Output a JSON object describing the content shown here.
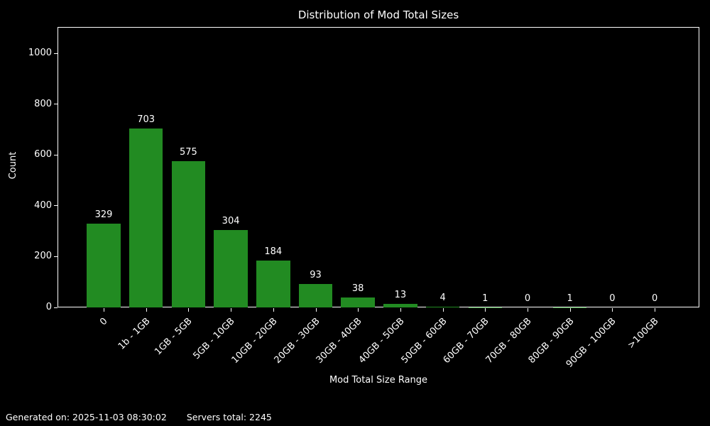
{
  "chart_data": {
    "type": "bar",
    "title": "Distribution of Mod Total Sizes",
    "xlabel": "Mod Total Size Range",
    "ylabel": "Count",
    "categories": [
      "0",
      "1b - 1GB",
      "1GB - 5GB",
      "5GB - 10GB",
      "10GB - 20GB",
      "20GB - 30GB",
      "30GB - 40GB",
      "40GB - 50GB",
      "50GB - 60GB",
      "60GB - 70GB",
      "70GB - 80GB",
      "80GB - 90GB",
      "90GB - 100GB",
      ">100GB"
    ],
    "values": [
      329,
      703,
      575,
      304,
      184,
      93,
      38,
      13,
      4,
      1,
      0,
      1,
      0,
      0
    ],
    "yticks": [
      0,
      200,
      400,
      600,
      800,
      1000
    ],
    "ylim": [
      0,
      1103
    ],
    "grid": false,
    "legend": null,
    "bar_color": "#228B22",
    "background_color": "#000000",
    "text_color": "#ffffff",
    "value_labels_shown": true
  },
  "footer": {
    "generated": "Generated on: 2025-11-03 08:30:02",
    "servers_total": "Servers total: 2245"
  }
}
